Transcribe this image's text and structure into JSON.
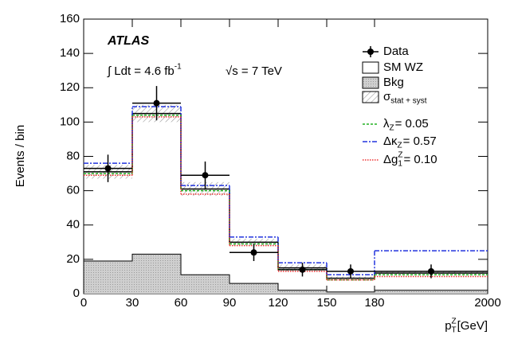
{
  "chart_data": {
    "type": "histogram",
    "y_label": "Events / bin",
    "x_label": {
      "base": "p",
      "sub": "T",
      "sup": "Z",
      "rest": " [GeV]"
    },
    "annotations": {
      "experiment": "ATLAS",
      "lumi": "∫ Ldt = 4.6 fb",
      "lumi_sup": "-1",
      "energy": "√s = 7 TeV"
    },
    "xticks": [
      0,
      30,
      60,
      90,
      120,
      150,
      180,
      2000
    ],
    "ylim": [
      0,
      160
    ],
    "yticks": [
      0,
      20,
      40,
      60,
      80,
      100,
      120,
      140,
      160
    ],
    "band": {
      "name": "σ",
      "sub": "stat + syst"
    },
    "series": [
      {
        "name": "Data",
        "style": "points",
        "color": "#000000",
        "values": [
          73,
          111,
          69,
          24,
          14,
          13,
          13
        ],
        "errors": [
          8,
          10,
          8,
          5,
          4,
          4,
          4
        ]
      },
      {
        "name": "SM WZ",
        "style": "solid",
        "color": "#000000",
        "values": [
          71,
          105,
          61,
          30,
          15,
          9,
          12
        ],
        "errors": [
          4,
          5,
          4,
          2,
          2,
          1,
          1
        ]
      },
      {
        "name": "Bkg",
        "style": "filled",
        "color": "#bdbdbd",
        "values": [
          19,
          23,
          11,
          6,
          2,
          1,
          2
        ]
      },
      {
        "name": "λ",
        "sub": "Z",
        "suffix": " = 0.05",
        "style": "dashed",
        "color": "#22b022",
        "values": [
          70,
          104,
          60,
          29,
          14,
          8,
          11
        ]
      },
      {
        "name": "Δκ",
        "sub": "Z",
        "suffix": " = 0.57",
        "style": "dashdot",
        "color": "#2233dd",
        "values": [
          76,
          109,
          63,
          33,
          18,
          11,
          25
        ]
      },
      {
        "name": "Δg",
        "sup": "Z",
        "sub": "1",
        "suffix": " = 0.10",
        "style": "dotted",
        "color": "#ee3333",
        "values": [
          69,
          103,
          58,
          28,
          13,
          8,
          10
        ]
      }
    ]
  }
}
